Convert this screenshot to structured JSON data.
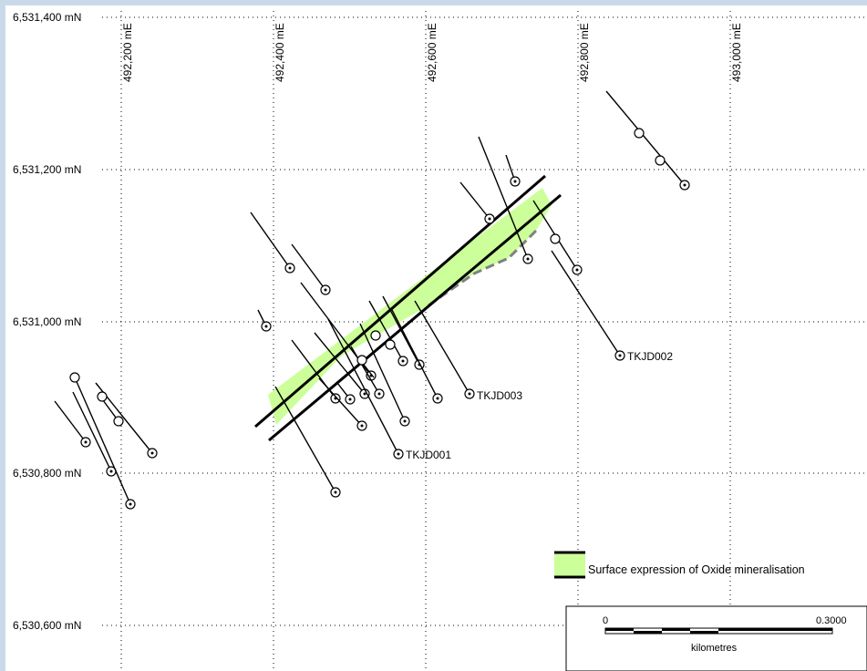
{
  "map": {
    "northing_labels": [
      "6,531,400 mN",
      "6,531,200 mN",
      "6,531,000 mN",
      "6,530,800 mN",
      "6,530,600 mN"
    ],
    "easting_labels": [
      "492,200 mE",
      "492,400 mE",
      "492,600 mE",
      "492,800 mE",
      "493,000 mE"
    ],
    "named_holes": [
      "TKJD001",
      "TKJD002",
      "TKJD003"
    ],
    "colors": {
      "oxide_fill": "#ccff99",
      "oxide_dashed_edge": "#808080",
      "trace_line": "#000000",
      "frame": "#c9d9ea"
    }
  },
  "legend": {
    "oxide_label": "Surface expression of Oxide mineralisation"
  },
  "scale_bar": {
    "start_label": "0",
    "end_label": "0.3000",
    "unit_label": "kilometres"
  }
}
